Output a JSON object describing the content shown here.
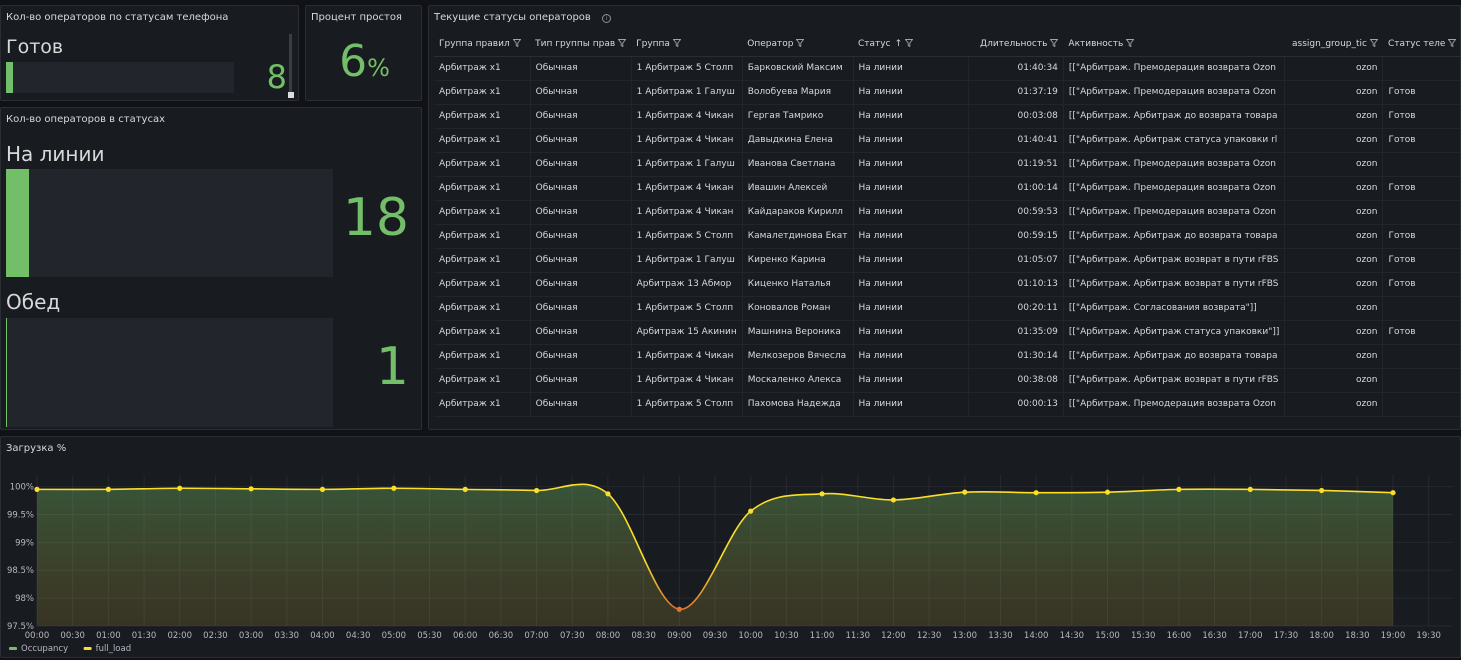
{
  "phone_panel": {
    "title": "Кол-во операторов по статусам телефона",
    "label": "Готов",
    "value": "8",
    "fill_fraction": 0.03
  },
  "idle_panel": {
    "title": "Процент простоя",
    "value": "6",
    "unit": "%"
  },
  "status_panel": {
    "title": "Кол-во операторов в статусах",
    "items": [
      {
        "label": "На линии",
        "value": "18",
        "fill_fraction": 0.07
      },
      {
        "label": "Обед",
        "value": "1",
        "fill_fraction": 0.004
      }
    ]
  },
  "table_panel": {
    "title": "Текущие статусы операторов",
    "info_icon": "info-icon",
    "columns": [
      "Группа правил",
      "Тип группы прав",
      "Группа",
      "Оператор",
      "Статус",
      "Длительность",
      "Активность",
      "assign_group_tic",
      "Статус теле"
    ],
    "sort_column": 4,
    "rows": [
      [
        "Арбитраж x1",
        "Обычная",
        "1 Арбитраж 5 Столп",
        "Барковский Максим",
        "На линии",
        "01:40:34",
        "[[\"Арбитраж. Премодерация возврата Ozon",
        "ozon",
        ""
      ],
      [
        "Арбитраж x1",
        "Обычная",
        "1 Арбитраж 1 Галуш",
        "Волобуева Мария",
        "На линии",
        "01:37:19",
        "[[\"Арбитраж. Премодерация возврата Ozon",
        "ozon",
        "Готов"
      ],
      [
        "Арбитраж x1",
        "Обычная",
        "1 Арбитраж 4 Чикан",
        "Гергая Тамрико",
        "На линии",
        "00:03:08",
        "[[\"Арбитраж. Арбитраж до возврата товара",
        "ozon",
        "Готов"
      ],
      [
        "Арбитраж x1",
        "Обычная",
        "1 Арбитраж 4 Чикан",
        "Давыдкина Елена",
        "На линии",
        "01:40:41",
        "[[\"Арбитраж. Арбитраж статуса упаковки rl",
        "ozon",
        "Готов"
      ],
      [
        "Арбитраж x1",
        "Обычная",
        "1 Арбитраж 1 Галуш",
        "Иванова Светлана",
        "На линии",
        "01:19:51",
        "[[\"Арбитраж. Премодерация возврата Ozon",
        "ozon",
        ""
      ],
      [
        "Арбитраж x1",
        "Обычная",
        "1 Арбитраж 4 Чикан",
        "Ивашин Алексей",
        "На линии",
        "01:00:14",
        "[[\"Арбитраж. Премодерация возврата Ozon",
        "ozon",
        "Готов"
      ],
      [
        "Арбитраж x1",
        "Обычная",
        "1 Арбитраж 4 Чикан",
        "Кайдараков Кирилл",
        "На линии",
        "00:59:53",
        "[[\"Арбитраж. Премодерация возврата Ozon",
        "ozon",
        ""
      ],
      [
        "Арбитраж x1",
        "Обычная",
        "1 Арбитраж 5 Столп",
        "Камалетдинова Екат",
        "На линии",
        "00:59:15",
        "[[\"Арбитраж. Арбитраж до возврата товара",
        "ozon",
        "Готов"
      ],
      [
        "Арбитраж x1",
        "Обычная",
        "1 Арбитраж 1 Галуш",
        "Киренко Карина",
        "На линии",
        "01:05:07",
        "[[\"Арбитраж. Арбитраж возврат в пути rFBS",
        "ozon",
        "Готов"
      ],
      [
        "Арбитраж x1",
        "Обычная",
        "Арбитраж 13 Абмор",
        "Киценко Наталья",
        "На линии",
        "01:10:13",
        "[[\"Арбитраж. Арбитраж возврат в пути rFBS",
        "ozon",
        "Готов"
      ],
      [
        "Арбитраж x1",
        "Обычная",
        "1 Арбитраж 5 Столп",
        "Коновалов Роман",
        "На линии",
        "00:20:11",
        "[[\"Арбитраж. Согласования возврата\"]]",
        "ozon",
        ""
      ],
      [
        "Арбитраж x1",
        "Обычная",
        "Арбитраж 15 Акинин",
        "Машнина Вероника",
        "На линии",
        "01:35:09",
        "[[\"Арбитраж. Арбитраж статуса упаковки\"]]",
        "ozon",
        "Готов"
      ],
      [
        "Арбитраж x1",
        "Обычная",
        "1 Арбитраж 4 Чикан",
        "Мелкозеров Вячесла",
        "На линии",
        "01:30:14",
        "[[\"Арбитраж. Арбитраж до возврата товара",
        "ozon",
        ""
      ],
      [
        "Арбитраж x1",
        "Обычная",
        "1 Арбитраж 4 Чикан",
        "Москаленко Алекса",
        "На линии",
        "00:38:08",
        "[[\"Арбитраж. Арбитраж возврат в пути rFBS",
        "ozon",
        ""
      ],
      [
        "Арбитраж x1",
        "Обычная",
        "1 Арбитраж 5 Столп",
        "Пахомова Надежда",
        "На линии",
        "00:00:13",
        "[[\"Арбитраж. Премодерация возврата Ozon",
        "ozon",
        ""
      ]
    ]
  },
  "chart_panel": {
    "title": "Загрузка %"
  },
  "chart_data": {
    "type": "area",
    "title": "Загрузка %",
    "x": [
      "00:00",
      "01:00",
      "02:00",
      "03:00",
      "04:00",
      "05:00",
      "06:00",
      "07:00",
      "08:00",
      "09:00",
      "10:00",
      "11:00",
      "12:00",
      "13:00",
      "14:00",
      "15:00",
      "16:00",
      "17:00",
      "18:00",
      "19:00"
    ],
    "x_ticks": [
      "00:00",
      "00:30",
      "01:00",
      "01:30",
      "02:00",
      "02:30",
      "03:00",
      "03:30",
      "04:00",
      "04:30",
      "05:00",
      "05:30",
      "06:00",
      "06:30",
      "07:00",
      "07:30",
      "08:00",
      "08:30",
      "09:00",
      "09:30",
      "10:00",
      "10:30",
      "11:00",
      "11:30",
      "12:00",
      "12:30",
      "13:00",
      "13:30",
      "14:00",
      "14:30",
      "15:00",
      "15:30",
      "16:00",
      "16:30",
      "17:00",
      "17:30",
      "18:00",
      "18:30",
      "19:00",
      "19:30"
    ],
    "series": [
      {
        "name": "full_load",
        "values": [
          99.95,
          99.95,
          99.97,
          99.96,
          99.95,
          99.97,
          99.95,
          99.93,
          99.87,
          97.8,
          99.56,
          99.87,
          99.76,
          99.9,
          99.89,
          99.9,
          99.95,
          99.95,
          99.93,
          99.89
        ]
      }
    ],
    "y_ticks": [
      "97.5%",
      "98%",
      "98.5%",
      "99%",
      "99.5%",
      "100%"
    ],
    "ylim": [
      97.5,
      100.1
    ],
    "grid": true,
    "legend": {
      "placement": "bottom-left",
      "items": [
        {
          "name": "Occupancy",
          "color": "#73bf69"
        },
        {
          "name": "full_load",
          "color": "#fade2a"
        }
      ]
    },
    "line_color": "#fade2a",
    "fill_color": "#73bf69"
  }
}
